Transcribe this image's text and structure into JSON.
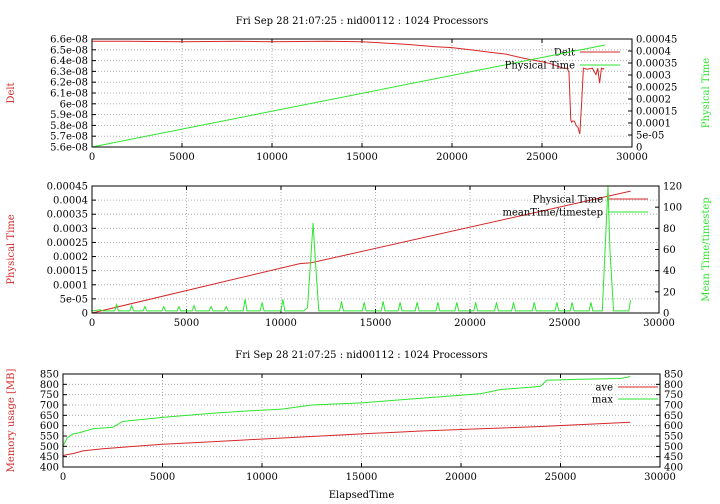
{
  "colors": {
    "red": "#d62728",
    "green": "#2ee62e",
    "grid": "#b0b0b0"
  },
  "chart_data": [
    {
      "type": "line",
      "title": "Fri Sep 28 21:07:25 : nid00112 : 1024 Processors",
      "xlabel": "",
      "ylabel": "Delt",
      "y2label": "Physical Time",
      "xlim": [
        0,
        30000
      ],
      "ylim": [
        5.6e-08,
        6.6e-08
      ],
      "y2lim": [
        0,
        0.00045
      ],
      "xticks": [
        "0",
        "5000",
        "10000",
        "15000",
        "20000",
        "25000",
        "30000"
      ],
      "yticks": [
        "5.6e-08",
        "5.7e-08",
        "5.8e-08",
        "5.9e-08",
        "6e-08",
        "6.1e-08",
        "6.2e-08",
        "6.3e-08",
        "6.4e-08",
        "6.5e-08",
        "6.6e-08"
      ],
      "y2ticks": [
        "0",
        "5e-05",
        "0.0001",
        "0.00015",
        "0.0002",
        "0.00025",
        "0.0003",
        "0.00035",
        "0.0004",
        "0.00045"
      ],
      "grid": true,
      "legend": "top-right",
      "series": [
        {
          "name": "Delt",
          "axis": "y",
          "color": "red",
          "x": [
            0,
            2000,
            5000,
            8000,
            10000,
            13000,
            15000,
            17500,
            19000,
            20000,
            21000,
            22000,
            23000,
            24000,
            25000,
            25500,
            26000,
            26200,
            26400,
            26500,
            26600,
            26650,
            26700,
            26800,
            26900,
            27000,
            27100,
            27200,
            27300,
            27500,
            27800,
            28000,
            28100,
            28200,
            28300,
            28400,
            28450
          ],
          "y": [
            6.58e-08,
            6.58e-08,
            6.575e-08,
            6.58e-08,
            6.575e-08,
            6.58e-08,
            6.575e-08,
            6.55e-08,
            6.53e-08,
            6.52e-08,
            6.5e-08,
            6.48e-08,
            6.46e-08,
            6.42e-08,
            6.39e-08,
            6.37e-08,
            6.34e-08,
            6.33e-08,
            6.33e-08,
            6.29e-08,
            5.85e-08,
            5.83e-08,
            5.84e-08,
            5.84e-08,
            5.8e-08,
            5.78e-08,
            5.72e-08,
            6e-08,
            6.33e-08,
            6.32e-08,
            6.33e-08,
            6.27e-08,
            6.33e-08,
            6.19e-08,
            6.33e-08,
            6.32e-08,
            6.33e-08
          ]
        },
        {
          "name": "Physical Time",
          "axis": "y2",
          "color": "green",
          "x": [
            0,
            28500
          ],
          "y": [
            0,
            0.000425
          ]
        }
      ]
    },
    {
      "type": "line",
      "title": "",
      "xlabel": "",
      "ylabel": "Physical Time",
      "y2label": "Mean Time/timestep",
      "xlim": [
        0,
        30000
      ],
      "ylim": [
        0,
        0.00045
      ],
      "y2lim": [
        0,
        120
      ],
      "xticks": [
        "0",
        "5000",
        "10000",
        "15000",
        "20000",
        "25000",
        "30000"
      ],
      "yticks": [
        "0",
        "5e-05",
        "0.0001",
        "0.00015",
        "0.0002",
        "0.00025",
        "0.0003",
        "0.00035",
        "0.0004",
        "0.00045"
      ],
      "y2ticks": [
        "0",
        "20",
        "40",
        "60",
        "80",
        "100",
        "120"
      ],
      "grid": true,
      "legend": "top-right",
      "series": [
        {
          "name": "Physical Time",
          "axis": "y",
          "color": "red",
          "x": [
            0,
            11000,
            11600,
            28500
          ],
          "y": [
            0,
            0.000175,
            0.000178,
            0.000432
          ]
        },
        {
          "name": "meanTime/timestep",
          "axis": "y2",
          "color": "green",
          "x": [
            0,
            400,
            600,
            800,
            1200,
            1300,
            1400,
            2000,
            2100,
            2200,
            2700,
            2800,
            2900,
            3700,
            3800,
            3900,
            4500,
            4600,
            4700,
            5300,
            5400,
            5500,
            6200,
            6300,
            6400,
            7000,
            7100,
            7200,
            8000,
            8100,
            8200,
            8900,
            9000,
            9100,
            9500,
            10000,
            10100,
            10200,
            11200,
            11400,
            11700,
            11800,
            12000,
            12200,
            13100,
            13200,
            13300,
            14300,
            14400,
            14500,
            15300,
            15400,
            15500,
            16200,
            16300,
            16400,
            17100,
            17200,
            17300,
            18200,
            18300,
            18400,
            19200,
            19300,
            19400,
            20200,
            20300,
            20400,
            21300,
            21400,
            21500,
            22200,
            22300,
            22400,
            23300,
            23400,
            23500,
            24500,
            24600,
            24700,
            25300,
            25400,
            25500,
            26300,
            26400,
            26500,
            27000,
            27300,
            27400,
            27600,
            28200,
            28400,
            28500
          ],
          "y": [
            2,
            3,
            2,
            2,
            2,
            8,
            2,
            2,
            7,
            2,
            2,
            6,
            2,
            2,
            6,
            2,
            2,
            6,
            2,
            2,
            7,
            2,
            2,
            6,
            2,
            2,
            6,
            2,
            2,
            13,
            2,
            2,
            10,
            2,
            2,
            2,
            13,
            2,
            2,
            5,
            85,
            55,
            2,
            2,
            2,
            11,
            2,
            2,
            10,
            2,
            2,
            11,
            2,
            2,
            10,
            2,
            2,
            10,
            2,
            2,
            10,
            2,
            2,
            10,
            2,
            2,
            10,
            2,
            2,
            10,
            2,
            2,
            10,
            2,
            2,
            10,
            2,
            2,
            10,
            2,
            2,
            10,
            2,
            2,
            10,
            2,
            2,
            120,
            60,
            2,
            2,
            2,
            12
          ]
        }
      ]
    },
    {
      "type": "line",
      "title": "Fri Sep 28 21:07:25 : nid00112 : 1024 Processors",
      "xlabel": "ElapsedTime",
      "ylabel": "Memory usage [MB]",
      "y2label": "",
      "xlim": [
        0,
        30000
      ],
      "ylim": [
        400,
        850
      ],
      "y2lim": [
        400,
        850
      ],
      "xticks": [
        "0",
        "5000",
        "10000",
        "15000",
        "20000",
        "25000",
        "30000"
      ],
      "yticks": [
        "400",
        "450",
        "500",
        "550",
        "600",
        "650",
        "700",
        "750",
        "800",
        "850"
      ],
      "y2ticks": [
        "400",
        "450",
        "500",
        "550",
        "600",
        "650",
        "700",
        "750",
        "800",
        "850"
      ],
      "grid": true,
      "legend": "top-right",
      "series": [
        {
          "name": "ave",
          "axis": "y",
          "color": "red",
          "x": [
            0,
            200,
            500,
            1000,
            2000,
            3000,
            5000,
            7000,
            9000,
            12000,
            15000,
            18000,
            21000,
            24000,
            26000,
            28500
          ],
          "y": [
            455,
            460,
            465,
            478,
            488,
            496,
            510,
            520,
            530,
            545,
            560,
            574,
            585,
            596,
            605,
            617
          ]
        },
        {
          "name": "max",
          "axis": "y",
          "color": "green",
          "x": [
            0,
            200,
            500,
            800,
            1500,
            2500,
            3000,
            5000,
            7500,
            9000,
            11000,
            12500,
            15000,
            17000,
            19000,
            21000,
            22000,
            24000,
            24300,
            26000,
            28000,
            28400,
            28500
          ],
          "y": [
            500,
            540,
            560,
            565,
            585,
            592,
            620,
            640,
            660,
            670,
            680,
            700,
            710,
            725,
            740,
            755,
            775,
            790,
            820,
            825,
            828,
            835,
            840
          ]
        }
      ]
    }
  ]
}
